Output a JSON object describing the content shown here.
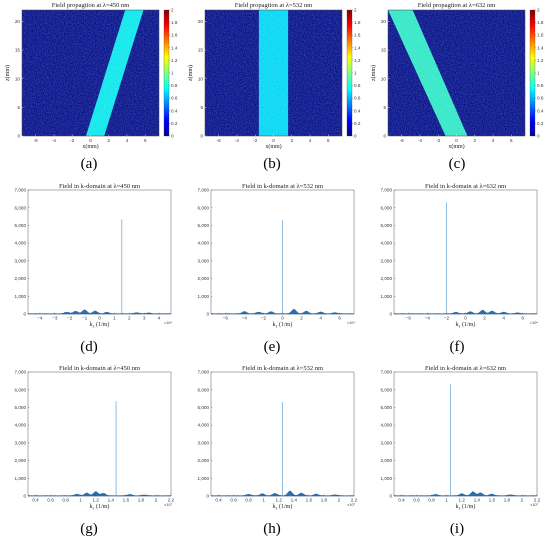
{
  "figure": {
    "captions": [
      "(a)",
      "(b)",
      "(c)",
      "(d)",
      "(e)",
      "(f)",
      "(g)",
      "(h)",
      "(i)"
    ],
    "colorbar_ticks": [
      "0",
      "0.2",
      "0.4",
      "0.6",
      "0.8",
      "1",
      "1.2",
      "1.4",
      "1.6",
      "1.8",
      "2"
    ]
  },
  "chart_data": [
    {
      "type": "heatmap",
      "title": "Field propagtion at λ=450 nm",
      "xlabel": "x(mm)",
      "ylabel": "z(mm)",
      "xticks": [
        -6,
        -4,
        -2,
        0,
        2,
        4,
        6
      ],
      "yticks": [
        0,
        5,
        10,
        15,
        20
      ],
      "xlim": [
        -7.5,
        7.5
      ],
      "ylim": [
        0,
        22
      ],
      "clim": [
        0,
        2
      ],
      "beam": {
        "x_at_z0": [
          -0.5,
          1.5
        ],
        "x_at_ztop": [
          3.8,
          5.8
        ],
        "level": 0.85
      }
    },
    {
      "type": "heatmap",
      "title": "Field propagtion at λ=532 nm",
      "xlabel": "x(mm)",
      "ylabel": "z(mm)",
      "xticks": [
        -6,
        -4,
        -2,
        0,
        2,
        4,
        6
      ],
      "yticks": [
        0,
        5,
        10,
        15,
        20
      ],
      "xlim": [
        -7.5,
        7.5
      ],
      "ylim": [
        0,
        22
      ],
      "clim": [
        0,
        2
      ],
      "beam": {
        "x_at_z0": [
          -1.6,
          1.6
        ],
        "x_at_ztop": [
          -1.6,
          1.6
        ],
        "level": 0.75
      }
    },
    {
      "type": "heatmap",
      "title": "Field propagtion at λ=632 nm",
      "xlabel": "x(mm)",
      "ylabel": "z(mm)",
      "xticks": [
        -6,
        -4,
        -2,
        0,
        2,
        4,
        6
      ],
      "yticks": [
        0,
        5,
        10,
        15,
        20
      ],
      "xlim": [
        -7.5,
        7.5
      ],
      "ylim": [
        0,
        22
      ],
      "clim": [
        0,
        2
      ],
      "beam": {
        "x_at_z0": [
          -1.2,
          1.2
        ],
        "x_at_ztop": [
          -7.5,
          -4.8
        ],
        "level": 1.0
      }
    },
    {
      "type": "line",
      "title": "Field in k-domain at λ=450 nm",
      "xlabel": "k",
      "xlabel_sub": "x",
      "xlabel_suffix": " (1/m)",
      "xticks": [
        -4,
        -3,
        -2,
        -1,
        0,
        1,
        2,
        3,
        4
      ],
      "tick_labels": [
        "−4",
        "−3",
        "−2",
        "−1",
        "0",
        "1",
        "2",
        "3",
        "4"
      ],
      "x_exponent": "×10⁴",
      "xlim": [
        -4.8,
        4.8
      ],
      "yticks": [
        0,
        1000,
        2000,
        3000,
        4000,
        5000,
        6000,
        7000
      ],
      "ytick_labels": [
        "0",
        "1,000",
        "2,000",
        "3,000",
        "4,000",
        "5,000",
        "6,000",
        "7,000"
      ],
      "ylim": [
        0,
        7000
      ],
      "peak": {
        "x": 1.5,
        "y": 5350
      },
      "bumps": [
        [
          -2.2,
          90
        ],
        [
          -1.6,
          140
        ],
        [
          -1.0,
          220
        ],
        [
          -0.3,
          150
        ],
        [
          0.5,
          80
        ],
        [
          2.5,
          60
        ],
        [
          3.3,
          40
        ]
      ]
    },
    {
      "type": "line",
      "title": "Field in k-domain at λ=532 nm",
      "xlabel": "k",
      "xlabel_sub": "x",
      "xlabel_suffix": " (1/m)",
      "xticks": [
        -6,
        -4,
        -2,
        0,
        2,
        4,
        6
      ],
      "tick_labels": [
        "−6",
        "−4",
        "−2",
        "0",
        "2",
        "4",
        "6"
      ],
      "x_exponent": "×10⁴",
      "xlim": [
        -7.5,
        7.5
      ],
      "yticks": [
        0,
        1000,
        2000,
        3000,
        4000,
        5000,
        6000,
        7000
      ],
      "ytick_labels": [
        "0",
        "1,000",
        "2,000",
        "3,000",
        "4,000",
        "5,000",
        "6,000",
        "7,000"
      ],
      "ylim": [
        0,
        7000
      ],
      "peak": {
        "x": 0,
        "y": 5300
      },
      "bumps": [
        [
          -4.0,
          120
        ],
        [
          -2.5,
          90
        ],
        [
          -1.2,
          110
        ],
        [
          1.2,
          250
        ],
        [
          2.5,
          140
        ],
        [
          4.0,
          100
        ],
        [
          5.5,
          60
        ]
      ]
    },
    {
      "type": "line",
      "title": "Field in k-domain at λ=632 nm",
      "xlabel": "k",
      "xlabel_sub": "x",
      "xlabel_suffix": " (1/m)",
      "xticks": [
        -6,
        -4,
        -2,
        0,
        2,
        4,
        6
      ],
      "tick_labels": [
        "−6",
        "−4",
        "−2",
        "0",
        "2",
        "4",
        "6"
      ],
      "x_exponent": "×10⁴",
      "xlim": [
        -7.5,
        7.5
      ],
      "yticks": [
        0,
        1000,
        2000,
        3000,
        4000,
        5000,
        6000,
        7000
      ],
      "ytick_labels": [
        "0",
        "1,000",
        "2,000",
        "3,000",
        "4,000",
        "5,000",
        "6,000",
        "7,000"
      ],
      "ylim": [
        0,
        7000
      ],
      "peak": {
        "x": -2.0,
        "y": 6300
      },
      "bumps": [
        [
          -1.0,
          80
        ],
        [
          0.5,
          110
        ],
        [
          1.8,
          200
        ],
        [
          2.8,
          150
        ],
        [
          4.0,
          90
        ],
        [
          5.5,
          50
        ]
      ]
    },
    {
      "type": "line",
      "title": "Field in k-domain at λ=450 nm",
      "xlabel": "k",
      "xlabel_sub": "x",
      "xlabel_suffix": " (1/m)",
      "xticks": [
        0.4,
        0.6,
        0.8,
        1.0,
        1.2,
        1.4,
        1.6,
        1.8,
        2.0,
        2.2
      ],
      "tick_labels": [
        "0.4",
        "0.6",
        "0.8",
        "1",
        "1.2",
        "1.4",
        "1.6",
        "1.8",
        "2",
        "2.2"
      ],
      "x_exponent": "×10⁷",
      "xlim": [
        0.3,
        2.2
      ],
      "yticks": [
        0,
        1000,
        2000,
        3000,
        4000,
        5000,
        6000,
        7000
      ],
      "ytick_labels": [
        "0",
        "1,000",
        "2,000",
        "3,000",
        "4,000",
        "5,000",
        "6,000",
        "7,000"
      ],
      "ylim": [
        0,
        7000
      ],
      "peak": {
        "x": 1.47,
        "y": 5350
      },
      "bumps": [
        [
          0.95,
          90
        ],
        [
          1.08,
          150
        ],
        [
          1.2,
          230
        ],
        [
          1.3,
          140
        ],
        [
          1.65,
          70
        ],
        [
          1.85,
          40
        ]
      ]
    },
    {
      "type": "line",
      "title": "Field in k-domain at λ=532 nm",
      "xlabel": "k",
      "xlabel_sub": "x",
      "xlabel_suffix": " (1/m)",
      "xticks": [
        0.4,
        0.6,
        0.8,
        1.0,
        1.2,
        1.4,
        1.6,
        1.8,
        2.0,
        2.2
      ],
      "tick_labels": [
        "0.4",
        "0.6",
        "0.8",
        "1",
        "1.2",
        "1.4",
        "1.6",
        "1.8",
        "2",
        "2.2"
      ],
      "x_exponent": "×10⁷",
      "xlim": [
        0.3,
        2.2
      ],
      "yticks": [
        0,
        1000,
        2000,
        3000,
        4000,
        5000,
        6000,
        7000
      ],
      "ytick_labels": [
        "0",
        "1,000",
        "2,000",
        "3,000",
        "4,000",
        "5,000",
        "6,000",
        "7,000"
      ],
      "ylim": [
        0,
        7000
      ],
      "peak": {
        "x": 1.25,
        "y": 5300
      },
      "bumps": [
        [
          0.8,
          80
        ],
        [
          0.98,
          110
        ],
        [
          1.15,
          130
        ],
        [
          1.35,
          260
        ],
        [
          1.5,
          150
        ],
        [
          1.7,
          90
        ],
        [
          1.95,
          50
        ]
      ]
    },
    {
      "type": "line",
      "title": "Field in k-domain at λ=632 nm",
      "xlabel": "k",
      "xlabel_sub": "x",
      "xlabel_suffix": " (1/m)",
      "xticks": [
        0.4,
        0.6,
        0.8,
        1.0,
        1.2,
        1.4,
        1.6,
        1.8,
        2.0,
        2.2
      ],
      "tick_labels": [
        "0.4",
        "0.6",
        "0.8",
        "1",
        "1.2",
        "1.4",
        "1.6",
        "1.8",
        "2",
        "2.2"
      ],
      "x_exponent": "×10⁷",
      "xlim": [
        0.3,
        2.2
      ],
      "yticks": [
        0,
        1000,
        2000,
        3000,
        4000,
        5000,
        6000,
        7000
      ],
      "ytick_labels": [
        "0",
        "1,000",
        "2,000",
        "3,000",
        "4,000",
        "5,000",
        "6,000",
        "7,000"
      ],
      "ylim": [
        0,
        7000
      ],
      "peak": {
        "x": 1.05,
        "y": 6300
      },
      "bumps": [
        [
          0.85,
          70
        ],
        [
          1.2,
          110
        ],
        [
          1.35,
          220
        ],
        [
          1.45,
          160
        ],
        [
          1.6,
          90
        ],
        [
          1.85,
          50
        ]
      ]
    }
  ]
}
